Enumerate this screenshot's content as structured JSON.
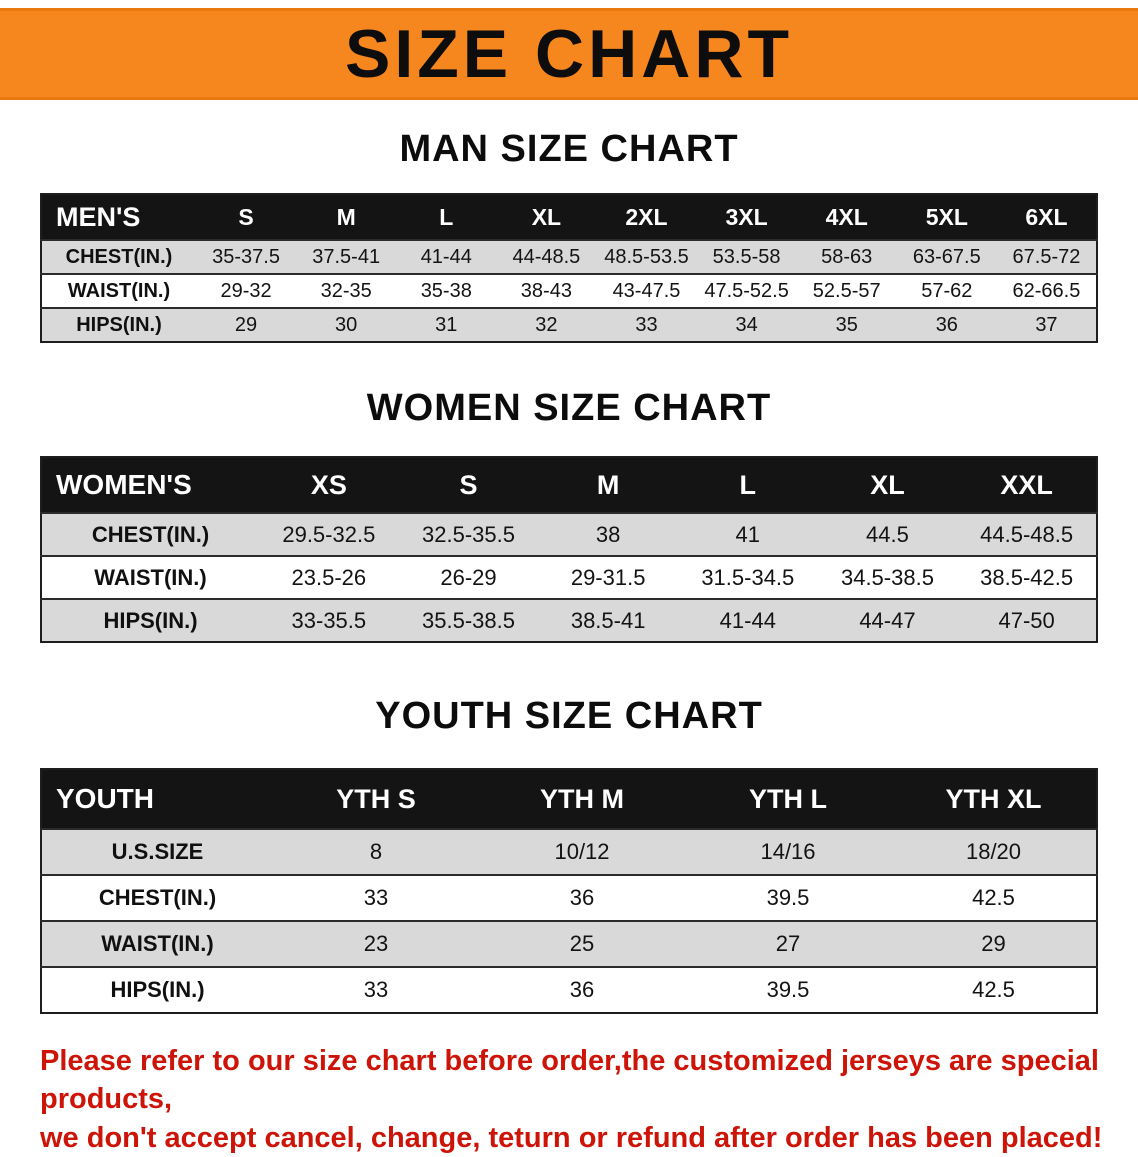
{
  "banner": {
    "title": "SIZE CHART",
    "bg_color": "#f6861e",
    "text_color": "#0d0d0d"
  },
  "sections": {
    "men": {
      "heading": "MAN SIZE CHART"
    },
    "women": {
      "heading": "WOMEN SIZE CHART"
    },
    "youth": {
      "heading": "YOUTH SIZE CHART"
    }
  },
  "chart_data": [
    {
      "type": "table",
      "title": "MAN SIZE CHART",
      "header": [
        "MEN'S",
        "S",
        "M",
        "L",
        "XL",
        "2XL",
        "3XL",
        "4XL",
        "5XL",
        "6XL"
      ],
      "rows": [
        {
          "label": "CHEST(IN.)",
          "values": [
            "35-37.5",
            "37.5-41",
            "41-44",
            "44-48.5",
            "48.5-53.5",
            "53.5-58",
            "58-63",
            "63-67.5",
            "67.5-72"
          ]
        },
        {
          "label": "WAIST(IN.)",
          "values": [
            "29-32",
            "32-35",
            "35-38",
            "38-43",
            "43-47.5",
            "47.5-52.5",
            "52.5-57",
            "57-62",
            "62-66.5"
          ]
        },
        {
          "label": "HIPS(IN.)",
          "values": [
            "29",
            "30",
            "31",
            "32",
            "33",
            "34",
            "35",
            "36",
            "37"
          ]
        }
      ]
    },
    {
      "type": "table",
      "title": "WOMEN SIZE CHART",
      "header": [
        "WOMEN'S",
        "XS",
        "S",
        "M",
        "L",
        "XL",
        "XXL"
      ],
      "rows": [
        {
          "label": "CHEST(IN.)",
          "values": [
            "29.5-32.5",
            "32.5-35.5",
            "38",
            "41",
            "44.5",
            "44.5-48.5"
          ]
        },
        {
          "label": "WAIST(IN.)",
          "values": [
            "23.5-26",
            "26-29",
            "29-31.5",
            "31.5-34.5",
            "34.5-38.5",
            "38.5-42.5"
          ]
        },
        {
          "label": "HIPS(IN.)",
          "values": [
            "33-35.5",
            "35.5-38.5",
            "38.5-41",
            "41-44",
            "44-47",
            "47-50"
          ]
        }
      ]
    },
    {
      "type": "table",
      "title": "YOUTH SIZE CHART",
      "header": [
        "YOUTH",
        "YTH S",
        "YTH M",
        "YTH L",
        "YTH XL"
      ],
      "rows": [
        {
          "label": "U.S.SIZE",
          "values": [
            "8",
            "10/12",
            "14/16",
            "18/20"
          ]
        },
        {
          "label": "CHEST(IN.)",
          "values": [
            "33",
            "36",
            "39.5",
            "42.5"
          ]
        },
        {
          "label": "WAIST(IN.)",
          "values": [
            "23",
            "25",
            "27",
            "29"
          ]
        },
        {
          "label": "HIPS(IN.)",
          "values": [
            "33",
            "36",
            "39.5",
            "42.5"
          ]
        }
      ]
    }
  ],
  "footer": {
    "line1": "Please refer to our size chart before order,the customized jerseys are special products,",
    "line2": "we don't accept cancel, change, teturn or refund after order has been placed!",
    "text_color": "#cc1408"
  }
}
